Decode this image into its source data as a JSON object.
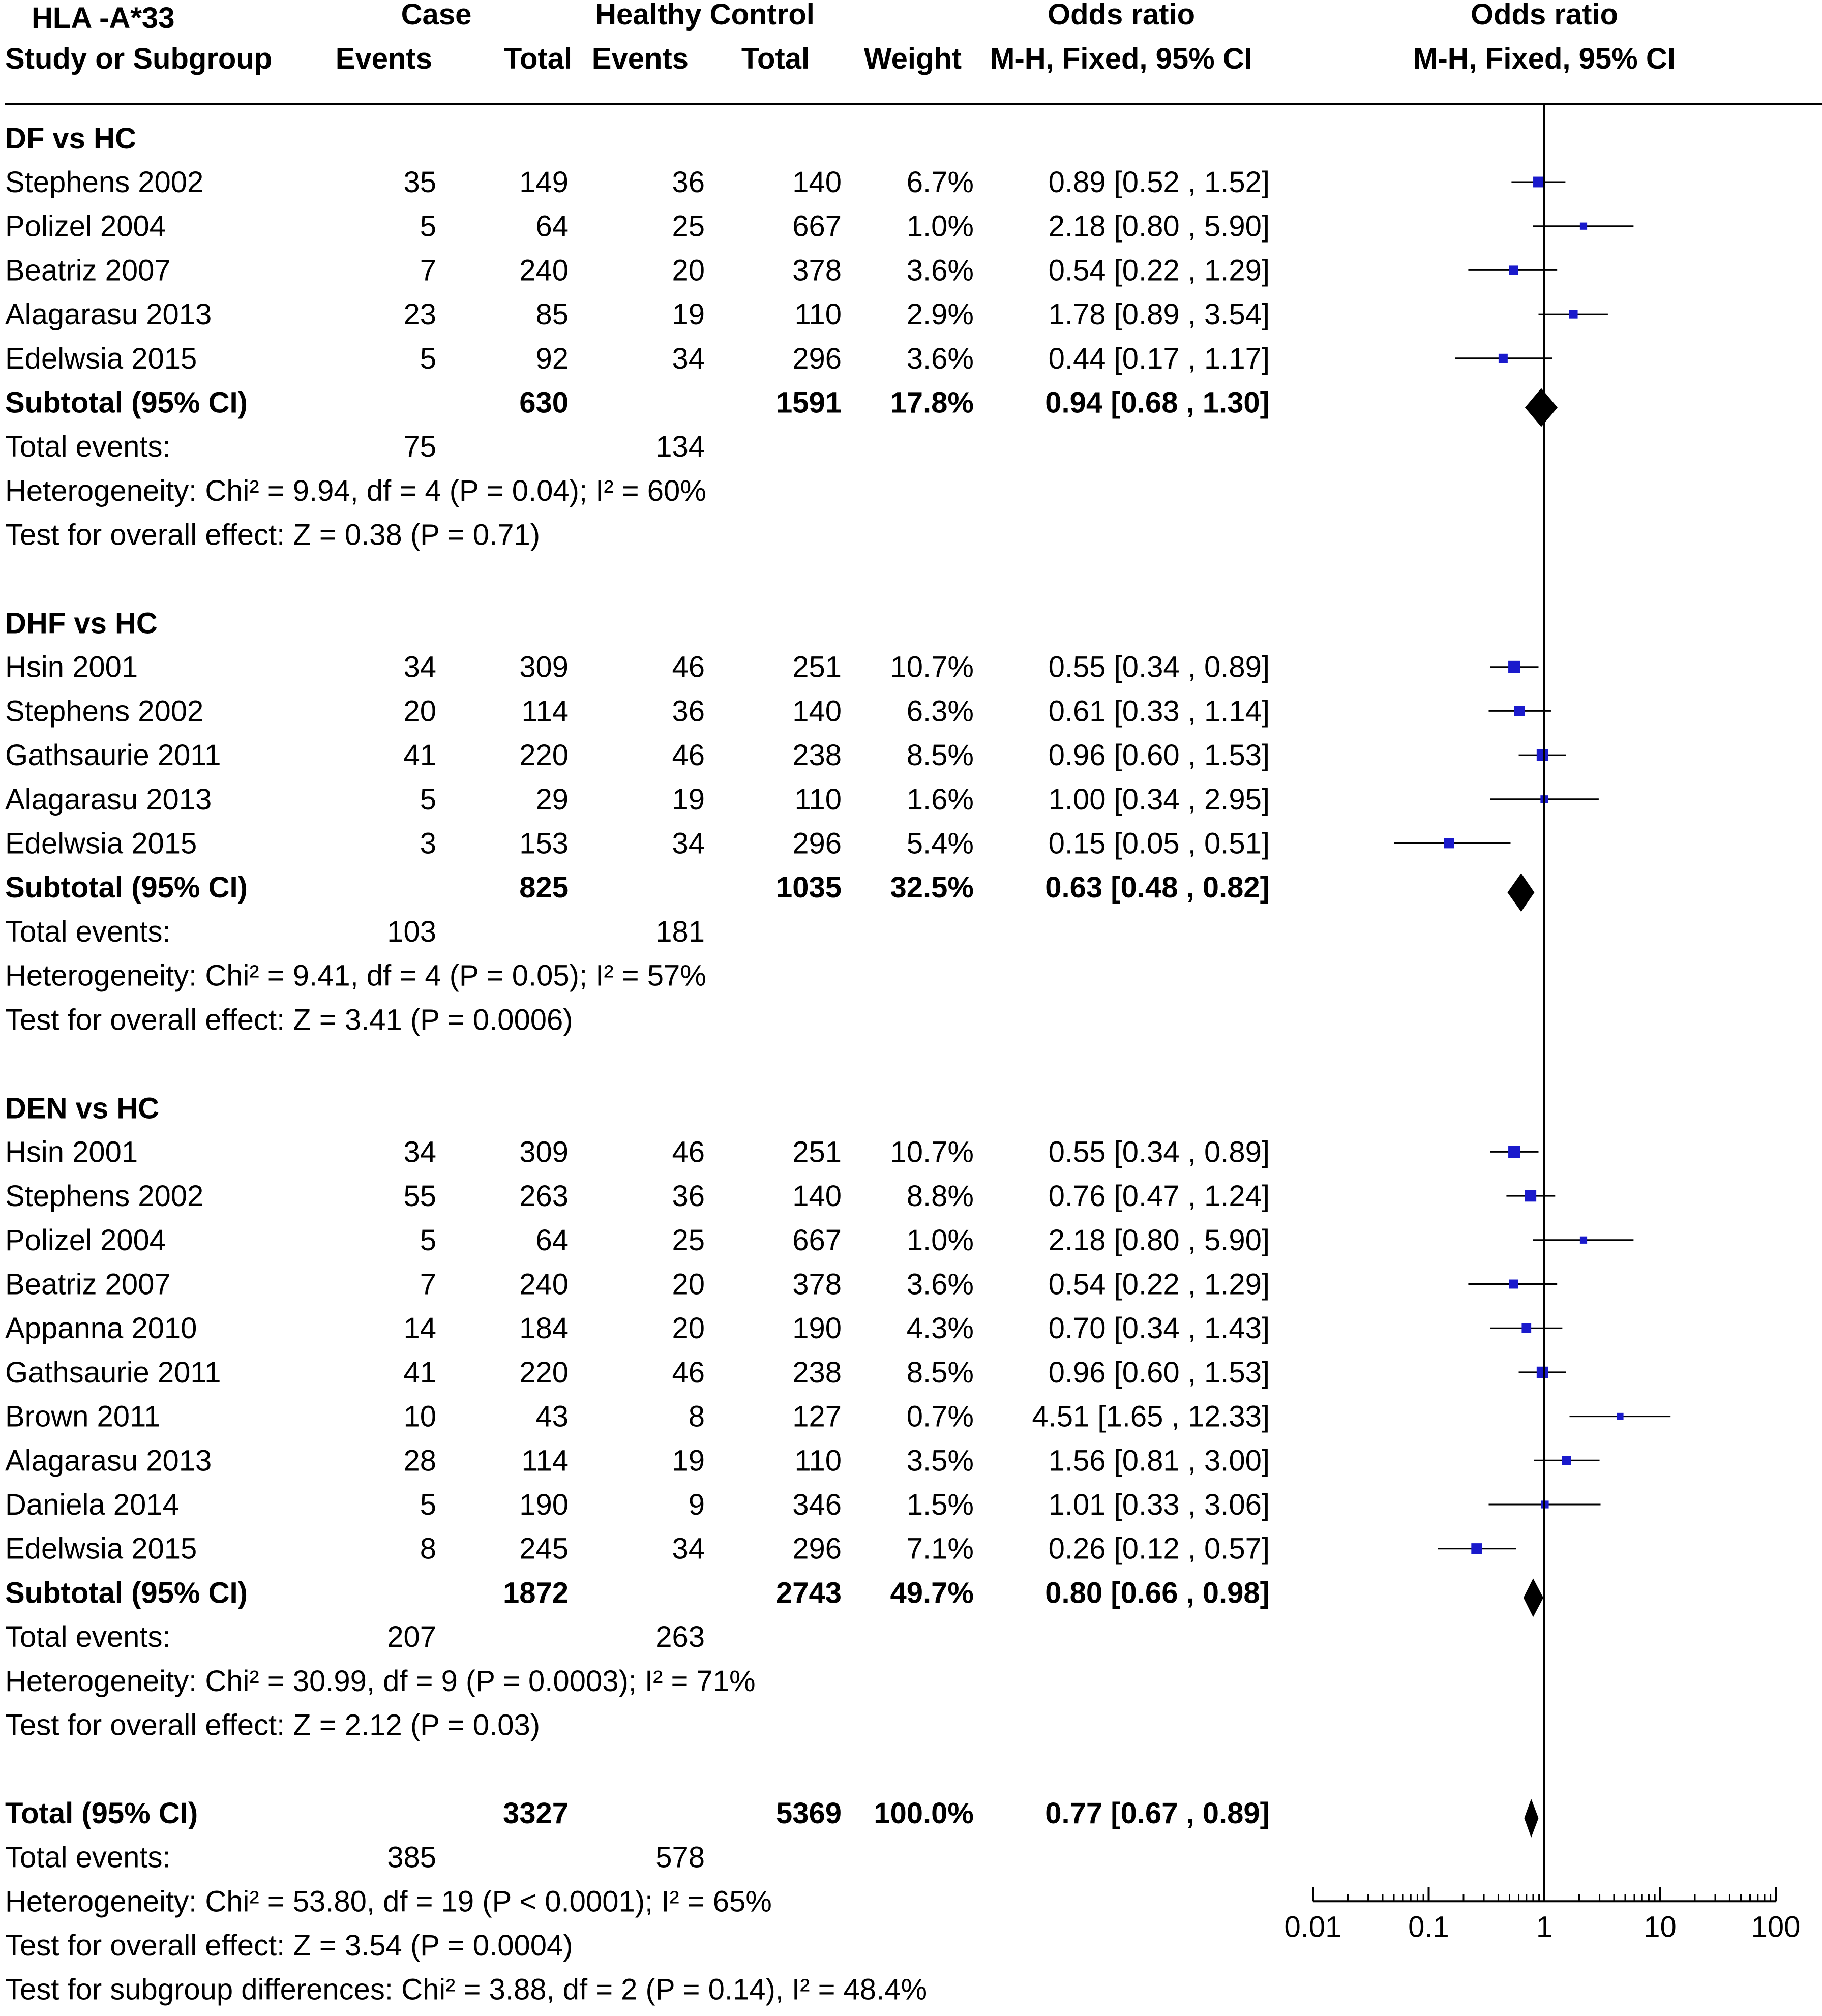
{
  "chart_data": {
    "type": "forest",
    "title": "HLA -A*33",
    "headers": {
      "case": "Case",
      "control": "Healthy Control",
      "odds_ratio": "Odds ratio",
      "study": "Study or Subgroup",
      "events": "Events",
      "total": "Total",
      "weight": "Weight",
      "method": "M-H, Fixed, 95% CI"
    },
    "axis": {
      "scale": "log",
      "ticks": [
        0.01,
        0.1,
        1,
        10,
        100
      ],
      "tick_labels": [
        "0.01",
        "0.1",
        "1",
        "10",
        "100"
      ],
      "range": [
        0.01,
        100
      ]
    },
    "subgroups": [
      {
        "name": "DF vs HC",
        "studies": [
          {
            "study": "Stephens 2002",
            "case_events": "35",
            "case_total": "149",
            "ctrl_events": "36",
            "ctrl_total": "140",
            "weight": "6.7%",
            "ci_text": "0.89 [0.52 , 1.52]",
            "or": 0.89,
            "lo": 0.52,
            "hi": 1.52,
            "w": 6.7
          },
          {
            "study": "Polizel 2004",
            "case_events": "5",
            "case_total": "64",
            "ctrl_events": "25",
            "ctrl_total": "667",
            "weight": "1.0%",
            "ci_text": "2.18 [0.80 , 5.90]",
            "or": 2.18,
            "lo": 0.8,
            "hi": 5.9,
            "w": 1.0
          },
          {
            "study": "Beatriz 2007",
            "case_events": "7",
            "case_total": "240",
            "ctrl_events": "20",
            "ctrl_total": "378",
            "weight": "3.6%",
            "ci_text": "0.54 [0.22 , 1.29]",
            "or": 0.54,
            "lo": 0.22,
            "hi": 1.29,
            "w": 3.6
          },
          {
            "study": "Alagarasu 2013",
            "case_events": "23",
            "case_total": "85",
            "ctrl_events": "19",
            "ctrl_total": "110",
            "weight": "2.9%",
            "ci_text": "1.78 [0.89 , 3.54]",
            "or": 1.78,
            "lo": 0.89,
            "hi": 3.54,
            "w": 2.9
          },
          {
            "study": "Edelwsia 2015",
            "case_events": "5",
            "case_total": "92",
            "ctrl_events": "34",
            "ctrl_total": "296",
            "weight": "3.6%",
            "ci_text": "0.44 [0.17 , 1.17]",
            "or": 0.44,
            "lo": 0.17,
            "hi": 1.17,
            "w": 3.6
          }
        ],
        "subtotal": {
          "label": "Subtotal (95% CI)",
          "case_total": "630",
          "ctrl_total": "1591",
          "weight": "17.8%",
          "ci_text": "0.94 [0.68 , 1.30]",
          "or": 0.94,
          "lo": 0.68,
          "hi": 1.3
        },
        "total_events": {
          "label": "Total events:",
          "case": "75",
          "ctrl": "134"
        },
        "heterogeneity": "Heterogeneity: Chi² = 9.94, df = 4 (P = 0.04); I² = 60%",
        "overall": "Test for overall effect: Z = 0.38 (P = 0.71)"
      },
      {
        "name": "DHF vs HC",
        "studies": [
          {
            "study": "Hsin 2001",
            "case_events": "34",
            "case_total": "309",
            "ctrl_events": "46",
            "ctrl_total": "251",
            "weight": "10.7%",
            "ci_text": "0.55 [0.34 , 0.89]",
            "or": 0.55,
            "lo": 0.34,
            "hi": 0.89,
            "w": 10.7
          },
          {
            "study": "Stephens 2002",
            "case_events": "20",
            "case_total": "114",
            "ctrl_events": "36",
            "ctrl_total": "140",
            "weight": "6.3%",
            "ci_text": "0.61 [0.33 , 1.14]",
            "or": 0.61,
            "lo": 0.33,
            "hi": 1.14,
            "w": 6.3
          },
          {
            "study": "Gathsaurie 2011",
            "case_events": "41",
            "case_total": "220",
            "ctrl_events": "46",
            "ctrl_total": "238",
            "weight": "8.5%",
            "ci_text": "0.96 [0.60 , 1.53]",
            "or": 0.96,
            "lo": 0.6,
            "hi": 1.53,
            "w": 8.5
          },
          {
            "study": "Alagarasu 2013",
            "case_events": "5",
            "case_total": "29",
            "ctrl_events": "19",
            "ctrl_total": "110",
            "weight": "1.6%",
            "ci_text": "1.00 [0.34 , 2.95]",
            "or": 1.0,
            "lo": 0.34,
            "hi": 2.95,
            "w": 1.6
          },
          {
            "study": "Edelwsia 2015",
            "case_events": "3",
            "case_total": "153",
            "ctrl_events": "34",
            "ctrl_total": "296",
            "weight": "5.4%",
            "ci_text": "0.15 [0.05 , 0.51]",
            "or": 0.15,
            "lo": 0.05,
            "hi": 0.51,
            "w": 5.4
          }
        ],
        "subtotal": {
          "label": "Subtotal (95% CI)",
          "case_total": "825",
          "ctrl_total": "1035",
          "weight": "32.5%",
          "ci_text": "0.63 [0.48 , 0.82]",
          "or": 0.63,
          "lo": 0.48,
          "hi": 0.82
        },
        "total_events": {
          "label": "Total events:",
          "case": "103",
          "ctrl": "181"
        },
        "heterogeneity": "Heterogeneity: Chi² = 9.41, df = 4 (P = 0.05); I² = 57%",
        "overall": "Test for overall effect: Z = 3.41 (P = 0.0006)"
      },
      {
        "name": "DEN vs HC",
        "studies": [
          {
            "study": "Hsin 2001",
            "case_events": "34",
            "case_total": "309",
            "ctrl_events": "46",
            "ctrl_total": "251",
            "weight": "10.7%",
            "ci_text": "0.55 [0.34 , 0.89]",
            "or": 0.55,
            "lo": 0.34,
            "hi": 0.89,
            "w": 10.7
          },
          {
            "study": "Stephens 2002",
            "case_events": "55",
            "case_total": "263",
            "ctrl_events": "36",
            "ctrl_total": "140",
            "weight": "8.8%",
            "ci_text": "0.76 [0.47 , 1.24]",
            "or": 0.76,
            "lo": 0.47,
            "hi": 1.24,
            "w": 8.8
          },
          {
            "study": "Polizel 2004",
            "case_events": "5",
            "case_total": "64",
            "ctrl_events": "25",
            "ctrl_total": "667",
            "weight": "1.0%",
            "ci_text": "2.18 [0.80 , 5.90]",
            "or": 2.18,
            "lo": 0.8,
            "hi": 5.9,
            "w": 1.0
          },
          {
            "study": "Beatriz 2007",
            "case_events": "7",
            "case_total": "240",
            "ctrl_events": "20",
            "ctrl_total": "378",
            "weight": "3.6%",
            "ci_text": "0.54 [0.22 , 1.29]",
            "or": 0.54,
            "lo": 0.22,
            "hi": 1.29,
            "w": 3.6
          },
          {
            "study": "Appanna 2010",
            "case_events": "14",
            "case_total": "184",
            "ctrl_events": "20",
            "ctrl_total": "190",
            "weight": "4.3%",
            "ci_text": "0.70 [0.34 , 1.43]",
            "or": 0.7,
            "lo": 0.34,
            "hi": 1.43,
            "w": 4.3
          },
          {
            "study": "Gathsaurie 2011",
            "case_events": "41",
            "case_total": "220",
            "ctrl_events": "46",
            "ctrl_total": "238",
            "weight": "8.5%",
            "ci_text": "0.96 [0.60 , 1.53]",
            "or": 0.96,
            "lo": 0.6,
            "hi": 1.53,
            "w": 8.5
          },
          {
            "study": "Brown 2011",
            "case_events": "10",
            "case_total": "43",
            "ctrl_events": "8",
            "ctrl_total": "127",
            "weight": "0.7%",
            "ci_text": "4.51 [1.65 , 12.33]",
            "or": 4.51,
            "lo": 1.65,
            "hi": 12.33,
            "w": 0.7
          },
          {
            "study": "Alagarasu 2013",
            "case_events": "28",
            "case_total": "114",
            "ctrl_events": "19",
            "ctrl_total": "110",
            "weight": "3.5%",
            "ci_text": "1.56 [0.81 , 3.00]",
            "or": 1.56,
            "lo": 0.81,
            "hi": 3.0,
            "w": 3.5
          },
          {
            "study": "Daniela 2014",
            "case_events": "5",
            "case_total": "190",
            "ctrl_events": "9",
            "ctrl_total": "346",
            "weight": "1.5%",
            "ci_text": "1.01 [0.33 , 3.06]",
            "or": 1.01,
            "lo": 0.33,
            "hi": 3.06,
            "w": 1.5
          },
          {
            "study": "Edelwsia 2015",
            "case_events": "8",
            "case_total": "245",
            "ctrl_events": "34",
            "ctrl_total": "296",
            "weight": "7.1%",
            "ci_text": "0.26 [0.12 , 0.57]",
            "or": 0.26,
            "lo": 0.12,
            "hi": 0.57,
            "w": 7.1
          }
        ],
        "subtotal": {
          "label": "Subtotal (95% CI)",
          "case_total": "1872",
          "ctrl_total": "2743",
          "weight": "49.7%",
          "ci_text": "0.80 [0.66 , 0.98]",
          "or": 0.8,
          "lo": 0.66,
          "hi": 0.98
        },
        "total_events": {
          "label": "Total events:",
          "case": "207",
          "ctrl": "263"
        },
        "heterogeneity": "Heterogeneity: Chi² = 30.99, df = 9 (P = 0.0003); I² = 71%",
        "overall": "Test for overall effect: Z = 2.12 (P = 0.03)"
      }
    ],
    "total": {
      "label": "Total (95% CI)",
      "case_total": "3327",
      "ctrl_total": "5369",
      "weight": "100.0%",
      "ci_text": "0.77 [0.67 , 0.89]",
      "or": 0.77,
      "lo": 0.67,
      "hi": 0.89,
      "total_events": {
        "label": "Total events:",
        "case": "385",
        "ctrl": "578"
      },
      "heterogeneity": "Heterogeneity: Chi² = 53.80, df = 19 (P < 0.0001); I² = 65%",
      "overall": "Test for overall effect: Z = 3.54 (P = 0.0004)",
      "subgroup_diff": "Test for subgroup differences: Chi² = 3.88, df = 2 (P = 0.14), I² = 48.4%"
    },
    "colors": {
      "square": "#1a1acc",
      "diamond": "#000000",
      "line": "#000000"
    }
  }
}
